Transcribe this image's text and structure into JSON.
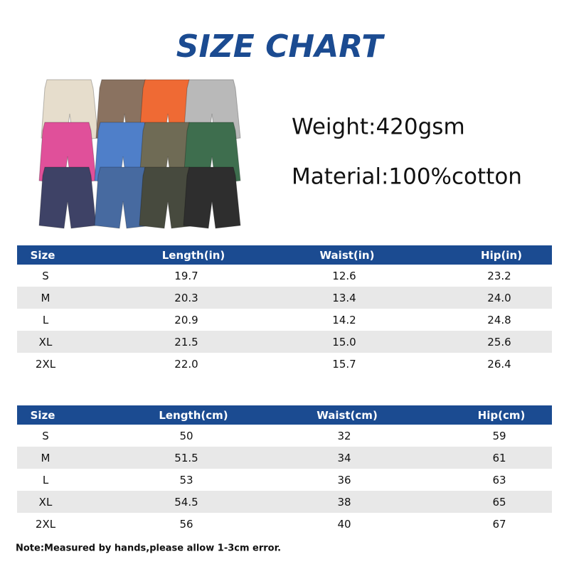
{
  "title": "SIZE CHART",
  "specs": {
    "weight": "Weight:420gsm",
    "material": "Material:100%cotton"
  },
  "tables": [
    {
      "header": [
        "Size",
        "Length(in)",
        "Waist(in)",
        "Hip(in)"
      ],
      "rows": [
        [
          "S",
          "19.7",
          "12.6",
          "23.2"
        ],
        [
          "M",
          "20.3",
          "13.4",
          "24.0"
        ],
        [
          "L",
          "20.9",
          "14.2",
          "24.8"
        ],
        [
          "XL",
          "21.5",
          "15.0",
          "25.6"
        ],
        [
          "2XL",
          "22.0",
          "15.7",
          "26.4"
        ]
      ]
    },
    {
      "header": [
        "Size",
        "Length(cm)",
        "Waist(cm)",
        "Hip(cm)"
      ],
      "rows": [
        [
          "S",
          "50",
          "32",
          "59"
        ],
        [
          "M",
          "51.5",
          "34",
          "61"
        ],
        [
          "L",
          "53",
          "36",
          "63"
        ],
        [
          "XL",
          "54.5",
          "38",
          "65"
        ],
        [
          "2XL",
          "56",
          "40",
          "67"
        ]
      ]
    }
  ],
  "note": "Note:Measured by hands,please allow 1-3cm error."
}
